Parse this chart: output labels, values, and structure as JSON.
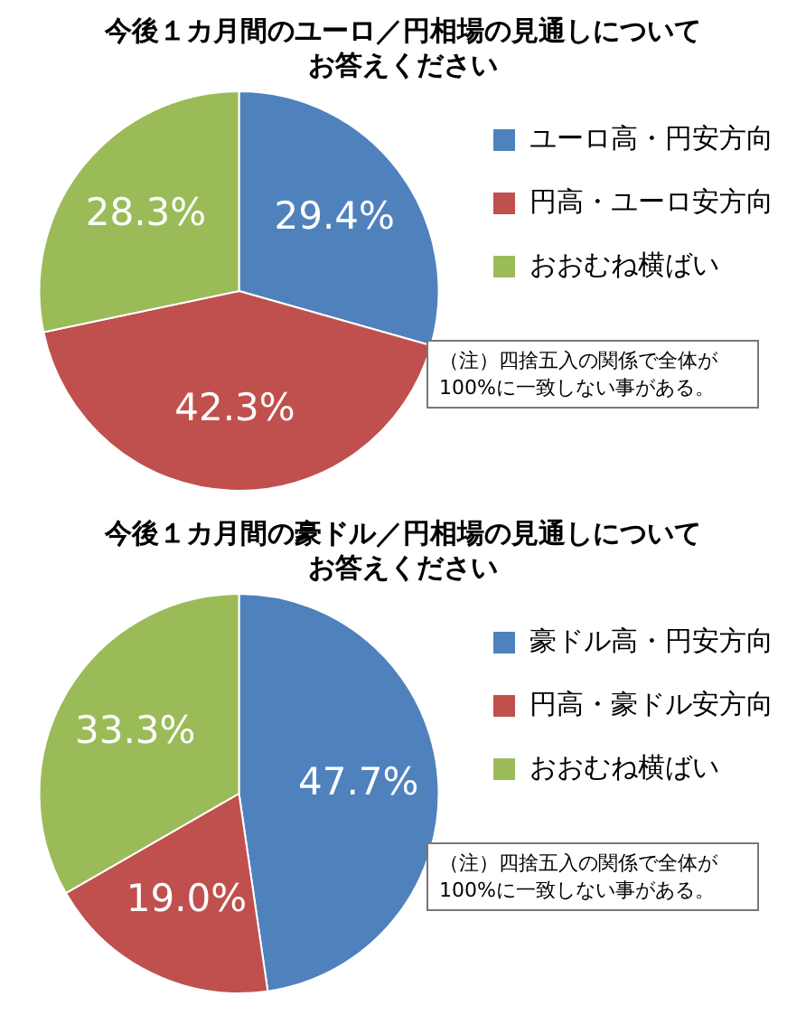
{
  "chart_data": [
    {
      "type": "pie",
      "title": "今後１カ月間のユーロ／円相場の見通しについてお答えください",
      "categories": [
        "ユーロ高・円安方向",
        "円高・ユーロ安方向",
        "おおむね横ばい"
      ],
      "values": [
        29.4,
        42.3,
        28.3
      ],
      "value_labels": [
        "29.4%",
        "42.3%",
        "28.3%"
      ],
      "colors": [
        "#4f81bd",
        "#c0504d",
        "#9bbb59"
      ],
      "legend": "right",
      "annotations": [
        "（注）四捨五入の関係で全体が100%に一致しない事がある。"
      ]
    },
    {
      "type": "pie",
      "title": "今後１カ月間の豪ドル／円相場の見通しについてお答えください",
      "categories": [
        "豪ドル高・円安方向",
        "円高・豪ドル安方向",
        "おおむね横ばい"
      ],
      "values": [
        47.7,
        19.0,
        33.3
      ],
      "value_labels": [
        "47.7%",
        "19.0%",
        "33.3%"
      ],
      "colors": [
        "#4f81bd",
        "#c0504d",
        "#9bbb59"
      ],
      "legend": "right",
      "annotations": [
        "（注）四捨五入の関係で全体が100%に一致しない事がある。"
      ]
    }
  ]
}
